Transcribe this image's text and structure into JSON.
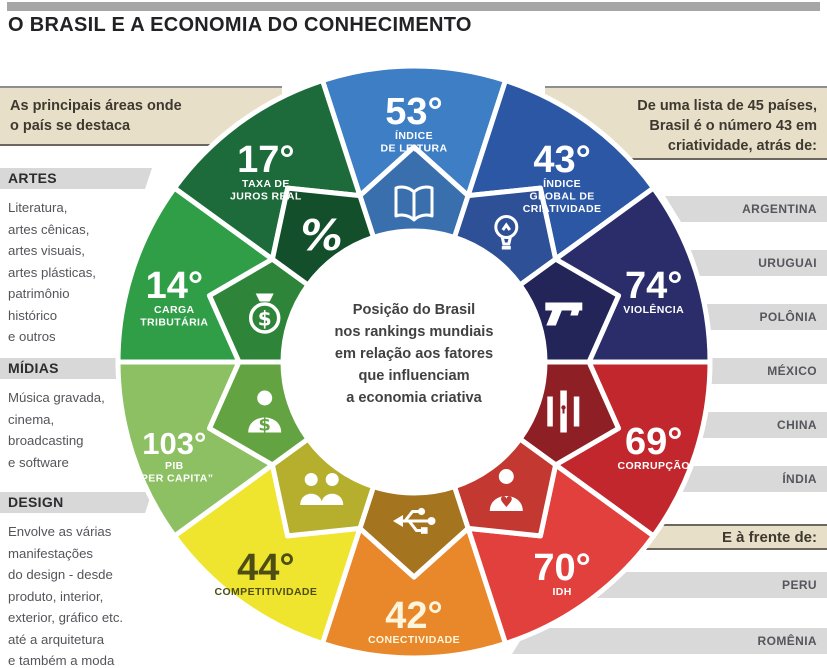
{
  "header": {
    "title": "O BRASIL E A ECONOMIA DO CONHECIMENTO"
  },
  "left_panel": {
    "intro": "As principais áreas onde\no país se destaca",
    "sections": [
      {
        "heading": "ARTES",
        "body": "Literatura,\nartes cênicas,\nartes visuais,\nartes plásticas,\npatrimônio\nhistórico\ne outros"
      },
      {
        "heading": "MÍDIAS",
        "body": "Música gravada,\ncinema,\nbroadcasting\ne software"
      },
      {
        "heading": "DESIGN",
        "body": "Envolve as várias\nmanifestações\ndo design - desde\nproduto, interior,\nexterior, gráfico etc.\naté a arquitetura\ne também a moda"
      }
    ]
  },
  "right_panel": {
    "intro": "De uma lista de 45 países,\nBrasil é o número 43 em\ncriatividade, atrás de:",
    "behind_countries": [
      "ARGENTINA",
      "URUGUAI",
      "POLÔNIA",
      "MÉXICO",
      "CHINA",
      "ÍNDIA"
    ],
    "ahead_label": "E à frente de:",
    "ahead_countries": [
      "PERU",
      "ROMÊNIA"
    ]
  },
  "chart_data": {
    "type": "pie",
    "title": "O Brasil e a Economia do Conhecimento",
    "center_text": "Posição do Brasil\nnos rankings mundiais\nem relação aos fatores\nque influenciam\na economia criativa",
    "categories": [
      "Índice de Leitura",
      "Índice Global de Criatividade",
      "Violência",
      "Corrupção",
      "IDH",
      "Conectividade",
      "Competitividade",
      "PIB per capita",
      "Carga Tributária",
      "Taxa de Juros Real"
    ],
    "values": [
      53,
      43,
      74,
      69,
      70,
      42,
      44,
      103,
      14,
      17
    ],
    "segments": [
      {
        "rank": "53°",
        "value": 53,
        "label_lines": [
          "ÍNDICE",
          "DE LEITURA"
        ],
        "outer_color": "#3d7ec5",
        "inner_color": "#3a6fae",
        "text_color": "#ffffff",
        "icon": "book-icon"
      },
      {
        "rank": "43°",
        "value": 43,
        "label_lines": [
          "ÍNDICE",
          "GLOBAL DE",
          "CRIATIVIDADE"
        ],
        "outer_color": "#2b57a5",
        "inner_color": "#2d5096",
        "text_color": "#ffffff",
        "icon": "lightbulb-icon"
      },
      {
        "rank": "74°",
        "value": 74,
        "label_lines": [
          "VIOLÊNCIA"
        ],
        "outer_color": "#2b2d6b",
        "inner_color": "#232457",
        "text_color": "#ffffff",
        "icon": "gun-icon"
      },
      {
        "rank": "69°",
        "value": 69,
        "label_lines": [
          "CORRUPÇÃO"
        ],
        "outer_color": "#c1272d",
        "inner_color": "#8e2025",
        "text_color": "#ffffff",
        "icon": "prison-bars-icon"
      },
      {
        "rank": "70°",
        "value": 70,
        "label_lines": [
          "IDH"
        ],
        "outer_color": "#e2403c",
        "inner_color": "#c33931",
        "text_color": "#ffffff",
        "icon": "person-heart-icon"
      },
      {
        "rank": "42°",
        "value": 42,
        "label_lines": [
          "CONECTIVIDADE"
        ],
        "outer_color": "#e8882a",
        "inner_color": "#a4741f",
        "text_color": "#fdf6dc",
        "icon": "usb-icon"
      },
      {
        "rank": "44°",
        "value": 44,
        "label_lines": [
          "COMPETITIVIDADE"
        ],
        "outer_color": "#efe52e",
        "inner_color": "#b5af2d",
        "text_color": "#4e4e14",
        "icon": "people-icon"
      },
      {
        "rank": "103°",
        "value": 103,
        "label_lines": [
          "PIB",
          "“PER CAPITA”"
        ],
        "outer_color": "#8cc063",
        "inner_color": "#63a342",
        "text_color": "#ffffff",
        "icon": "person-dollar-icon"
      },
      {
        "rank": "14°",
        "value": 14,
        "label_lines": [
          "CARGA",
          "TRIBUTÁRIA"
        ],
        "outer_color": "#2f9e47",
        "inner_color": "#2e8439",
        "text_color": "#ffffff",
        "icon": "money-bag-icon"
      },
      {
        "rank": "17°",
        "value": 17,
        "label_lines": [
          "TAXA DE",
          "JUROS REAL"
        ],
        "outer_color": "#1d6b3a",
        "inner_color": "#124f2a",
        "text_color": "#ffffff",
        "icon": "percent-icon"
      }
    ]
  },
  "colors": {
    "beige": "#e8dfc8",
    "list_bar": "#d9d9d9",
    "section_bar": "#d8d8d8",
    "rule_gray": "#a6a6a6",
    "rule_dark": "#6b665e",
    "text_dark": "#2c2c2f",
    "text_body": "#54555a",
    "text_intro": "#3e3930"
  }
}
